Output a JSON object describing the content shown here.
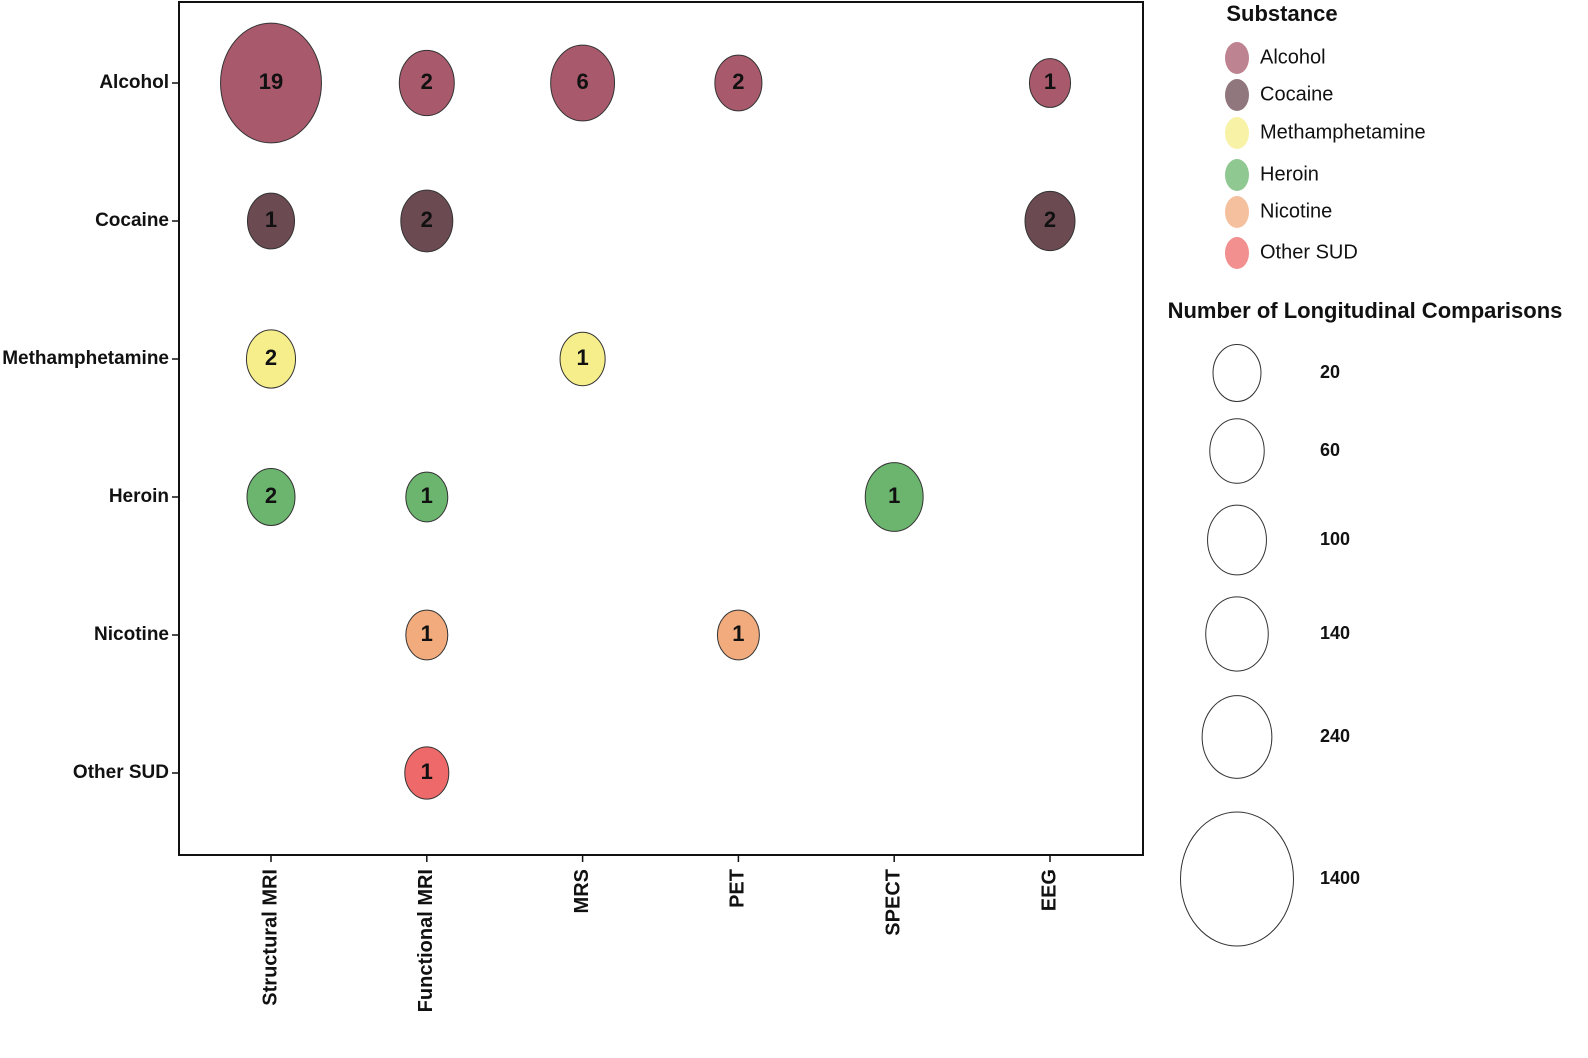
{
  "chart_data": {
    "type": "bubble",
    "x_categories": [
      "Structural MRI",
      "Functional MRI",
      "MRS",
      "PET",
      "SPECT",
      "EEG"
    ],
    "y_categories": [
      "Alcohol",
      "Cocaine",
      "Methamphetamine",
      "Heroin",
      "Nicotine",
      "Other SUD"
    ],
    "color_legend_title": "Substance",
    "size_legend_title": "Number of Longitudinal Comparisons",
    "size_legend": [
      20,
      60,
      100,
      140,
      240,
      1400
    ],
    "series": [
      {
        "name": "Alcohol",
        "color": "#a85a6c",
        "x": [
          "Structural MRI",
          "Functional MRI",
          "MRS",
          "PET",
          "EEG"
        ],
        "values": [
          19,
          2,
          6,
          2,
          1
        ],
        "sizes": [
          980,
          64,
          157,
          16,
          1
        ]
      },
      {
        "name": "Cocaine",
        "color": "#6b4a52",
        "x": [
          "Structural MRI",
          "Functional MRI",
          "EEG"
        ],
        "values": [
          1,
          2,
          2
        ],
        "sizes": [
          16,
          42,
          30
        ]
      },
      {
        "name": "Methamphetamine",
        "color": "#f5ee8a",
        "x": [
          "Structural MRI",
          "MRS"
        ],
        "values": [
          2,
          1
        ],
        "sizes": [
          25,
          9
        ]
      },
      {
        "name": "Heroin",
        "color": "#6bb56e",
        "x": [
          "Structural MRI",
          "Functional MRI",
          "SPECT"
        ],
        "values": [
          2,
          1,
          1
        ],
        "sizes": [
          20,
          2,
          90
        ]
      },
      {
        "name": "Nicotine",
        "color": "#f2ab7d",
        "x": [
          "Functional MRI",
          "PET"
        ],
        "values": [
          1,
          1
        ],
        "sizes": [
          2,
          2
        ]
      },
      {
        "name": "Other SUD",
        "color": "#ee6a6a",
        "x": [
          "Functional MRI"
        ],
        "values": [
          1
        ],
        "sizes": [
          6
        ]
      }
    ]
  }
}
